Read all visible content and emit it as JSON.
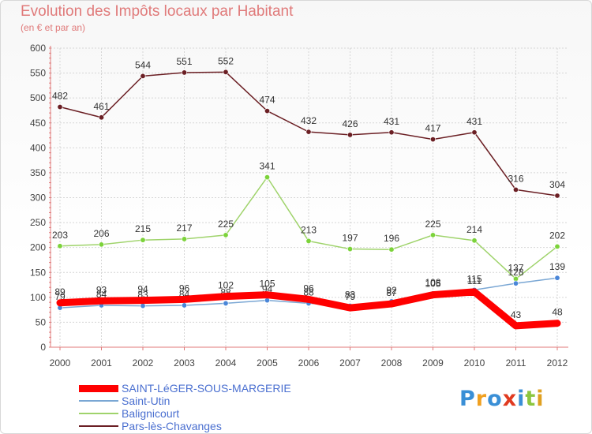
{
  "chart_data": {
    "type": "line",
    "title": "Evolution des Impôts locaux par Habitant",
    "subtitle": "(en € et par an)",
    "xlabel": "",
    "ylabel": "",
    "ylim": [
      0,
      600
    ],
    "yticks": [
      0,
      50,
      100,
      150,
      200,
      250,
      300,
      350,
      400,
      450,
      500,
      550,
      600
    ],
    "categories": [
      "2000",
      "2001",
      "2002",
      "2003",
      "2004",
      "2005",
      "2006",
      "2007",
      "2008",
      "2009",
      "2010",
      "2011",
      "2012"
    ],
    "grid": true,
    "legend_position": "bottom-left",
    "series": [
      {
        "name": "Pars-lès-Chavanges",
        "color": "#6b1f24",
        "marker": "#6b1f24",
        "values": [
          482,
          461,
          544,
          551,
          552,
          474,
          432,
          426,
          431,
          417,
          431,
          316,
          304
        ],
        "labels": [
          "482",
          "461",
          "544",
          "551",
          "552",
          "474",
          "432",
          "426",
          "431",
          "417",
          "431",
          "316",
          "304"
        ]
      },
      {
        "name": "Balignicourt",
        "color": "#9fd36b",
        "marker": "#7cd33a",
        "values": [
          203,
          206,
          215,
          217,
          225,
          341,
          213,
          197,
          196,
          225,
          214,
          137,
          202
        ],
        "labels": [
          "203",
          "206",
          "215",
          "217",
          "225",
          "341",
          "213",
          "197",
          "196",
          "225",
          "214",
          "137",
          "202"
        ]
      },
      {
        "name": "Saint-Utin",
        "color": "#7aa7d4",
        "marker": "#4a86d8",
        "values": [
          79,
          84,
          83,
          84,
          88,
          94,
          88,
          83,
          92,
          108,
          115,
          128,
          139
        ],
        "labels": [
          "79",
          "84",
          "83",
          "84",
          "88",
          "94",
          "88",
          "83",
          "92",
          "108",
          "115",
          "128",
          "139"
        ]
      },
      {
        "name": "SAINT-LéGER-SOUS-MARGERIE",
        "color": "#ff0000",
        "marker": "#ff0000",
        "values": [
          89,
          93,
          94,
          96,
          102,
          105,
          96,
          79,
          87,
          105,
          111,
          43,
          48
        ],
        "labels": [
          "89",
          "93",
          "94",
          "96",
          "102",
          "105",
          "96",
          "79",
          "87",
          "105",
          "111",
          "43",
          "48"
        ]
      }
    ]
  },
  "legend": [
    {
      "label": "SAINT-LéGER-SOUS-MARGERIE",
      "color": "#ff0000"
    },
    {
      "label": "Saint-Utin",
      "color": "#7aa7d4"
    },
    {
      "label": "Balignicourt",
      "color": "#9fd36b"
    },
    {
      "label": "Pars-lès-Chavanges",
      "color": "#6b1f24"
    }
  ],
  "logo": {
    "text": "Proxiti",
    "colors": [
      "#3a8fd6",
      "#f0a020",
      "#3a8fd6",
      "#e03a20",
      "#3a8fd6",
      "#8cc63f",
      "#e0a020"
    ]
  }
}
